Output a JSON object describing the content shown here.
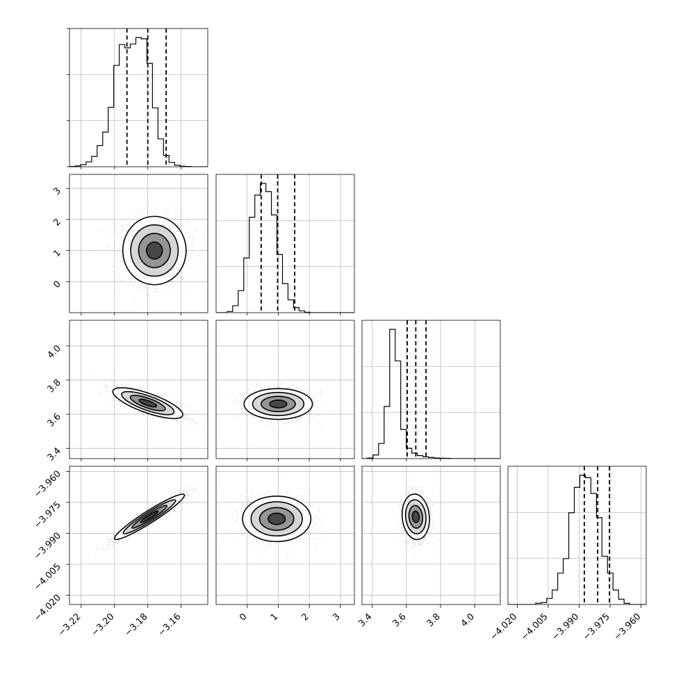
{
  "chart_data": {
    "type": "corner",
    "parameters": [
      {
        "range": [
          -3.227,
          -3.144
        ],
        "ticks": [
          -3.22,
          -3.2,
          -3.18,
          -3.16
        ],
        "tick_labels": [
          "−3.22",
          "−3.20",
          "−3.18",
          "−3.16"
        ],
        "quantiles": [
          -3.1925,
          -3.18,
          -3.169
        ],
        "histogram": {
          "bin_edges_start": -3.227,
          "bin_width": 0.00332,
          "counts": [
            1,
            3,
            8,
            19,
            40,
            82,
            134,
            230,
            392,
            473,
            460,
            475,
            500,
            495,
            400,
            228,
            108,
            44,
            17,
            6,
            2,
            1,
            0,
            0,
            0
          ]
        }
      },
      {
        "range": [
          -1.0,
          3.45
        ],
        "ticks": [
          0,
          1,
          2,
          3
        ],
        "tick_labels": [
          "0",
          "1",
          "2",
          "3"
        ],
        "quantiles": [
          0.45,
          0.98,
          1.53
        ],
        "histogram": {
          "bin_edges_start": -1.0,
          "bin_width": 0.178,
          "counts": [
            0,
            0,
            5,
            30,
            95,
            235,
            410,
            505,
            555,
            520,
            420,
            250,
            125,
            55,
            22,
            8,
            2,
            0,
            0,
            0,
            0,
            0,
            0,
            0,
            0
          ]
        }
      },
      {
        "range": [
          3.34,
          4.15
        ],
        "ticks": [
          3.4,
          3.6,
          3.8,
          4.0
        ],
        "tick_labels": [
          "3.4",
          "3.6",
          "3.8",
          "4.0"
        ],
        "quantiles": [
          3.605,
          3.655,
          3.715
        ],
        "histogram": {
          "bin_edges_start": 3.34,
          "bin_width": 0.0324,
          "counts": [
            0,
            5,
            30,
            125,
            430,
            1065,
            805,
            240,
            85,
            45,
            25,
            15,
            10,
            5,
            3,
            2,
            0,
            0,
            0,
            0,
            0,
            0,
            0,
            0,
            0
          ]
        }
      },
      {
        "range": [
          -4.0245,
          -3.9575
        ],
        "ticks": [
          -4.02,
          -4.005,
          -3.99,
          -3.975,
          -3.96
        ],
        "tick_labels": [
          "−4.020",
          "−4.005",
          "−3.990",
          "−3.975",
          "−3.960"
        ],
        "quantiles": [
          -3.9875,
          -3.981,
          -3.9753
        ],
        "histogram": {
          "bin_edges_start": -4.0245,
          "bin_width": 0.00268,
          "counts": [
            0,
            0,
            0,
            0,
            0,
            5,
            8,
            25,
            60,
            130,
            190,
            380,
            485,
            535,
            525,
            460,
            360,
            200,
            130,
            60,
            22,
            5,
            0,
            0,
            0
          ]
        }
      }
    ],
    "pairs": [
      {
        "row": 1,
        "col": 0,
        "center": [
          -3.176,
          1.0
        ],
        "spread": [
          0.0095,
          0.55
        ],
        "correlation": 0.0
      },
      {
        "row": 2,
        "col": 0,
        "center": [
          -3.18,
          3.665
        ],
        "spread": [
          0.0105,
          0.045
        ],
        "correlation": -0.75
      },
      {
        "row": 2,
        "col": 1,
        "center": [
          1.0,
          3.66
        ],
        "spread": [
          0.55,
          0.045
        ],
        "correlation": 0.0
      },
      {
        "row": 3,
        "col": 0,
        "center": [
          -3.179,
          -3.982
        ],
        "spread": [
          0.0105,
          0.0055
        ],
        "correlation": 0.95
      },
      {
        "row": 3,
        "col": 1,
        "center": [
          0.95,
          -3.983
        ],
        "spread": [
          0.55,
          0.0055
        ],
        "correlation": 0.0
      },
      {
        "row": 3,
        "col": 2,
        "center": [
          3.655,
          -3.982
        ],
        "spread": [
          0.04,
          0.0055
        ],
        "correlation": -0.1
      }
    ],
    "contour_levels_sigma": [
      0.5,
      1.0,
      1.5,
      2.0
    ],
    "grid": true,
    "colors": {
      "scatter": "#888888",
      "contour": "#000000",
      "quantile_line": "#000000",
      "grid": "#b0b0b0"
    }
  }
}
